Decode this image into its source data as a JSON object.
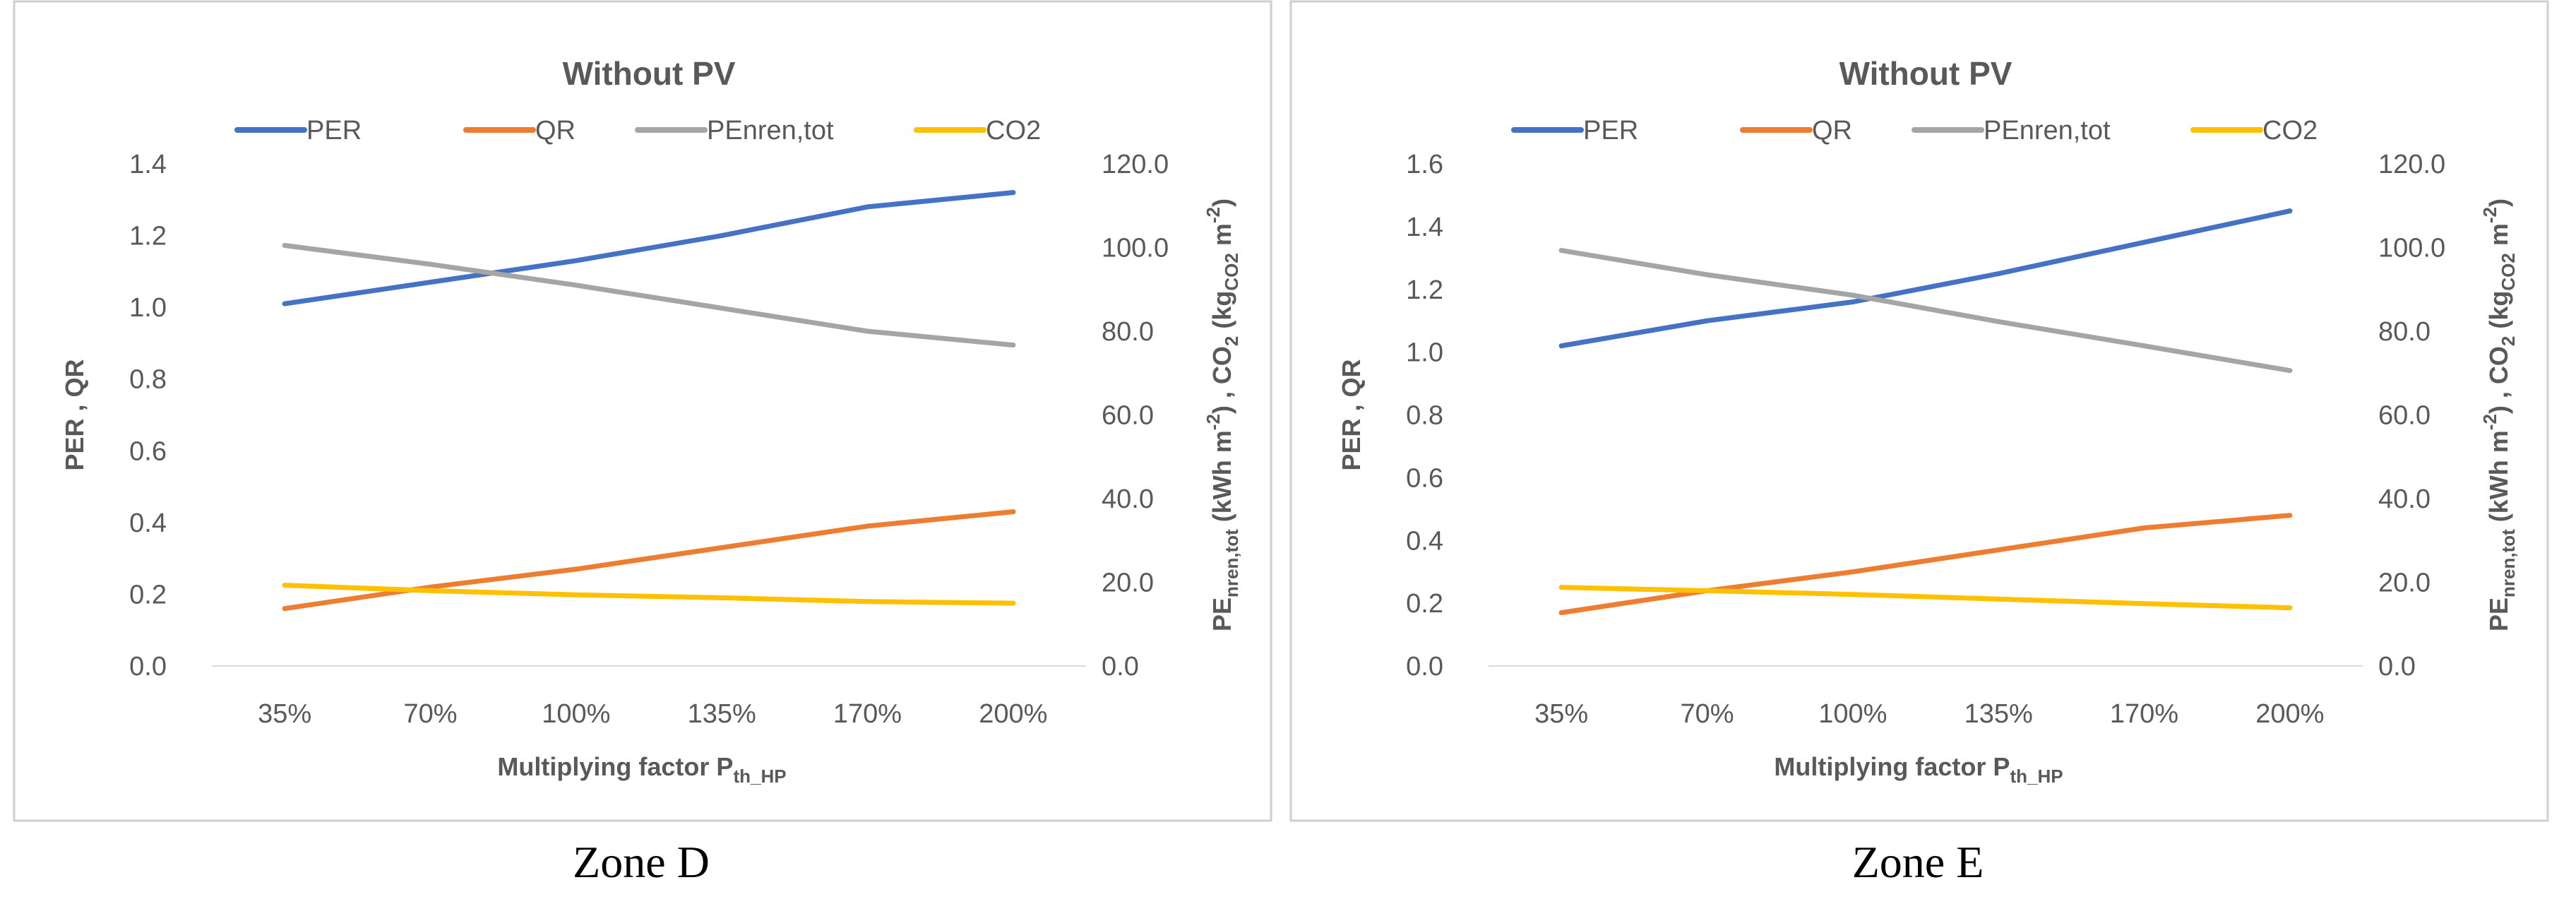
{
  "chart_data": [
    {
      "type": "line",
      "title": "Without PV",
      "caption": "Zone D",
      "categories": [
        "35%",
        "70%",
        "100%",
        "135%",
        "170%",
        "200%"
      ],
      "xlabel": {
        "main": "Multiplying factor P",
        "sub": "th_HP"
      },
      "ylabel_left": "PER , QR",
      "ylabel_right": {
        "pe": "PE",
        "pe_sub": "nren,tot",
        "unit1": " (kWh m",
        "sup1": "-2",
        "mid": ")  ,  CO",
        "co2_sub": "2",
        "unit2": "  (kg",
        "unit2_sub": "CO2",
        "unit2_mid": " m",
        "sup2": "-2",
        "close": ")"
      },
      "ylim_left": [
        0,
        1.4
      ],
      "yticks_left": [
        "0.0",
        "0.2",
        "0.4",
        "0.6",
        "0.8",
        "1.0",
        "1.2",
        "1.4"
      ],
      "ylim_right": [
        0,
        120
      ],
      "yticks_right": [
        "0.0",
        "20.0",
        "40.0",
        "60.0",
        "80.0",
        "100.0",
        "120.0"
      ],
      "series": [
        {
          "name": "PER",
          "axis": "left",
          "color": "#4472c4",
          "values": [
            1.01,
            1.07,
            1.13,
            1.2,
            1.28,
            1.32
          ]
        },
        {
          "name": "QR",
          "axis": "left",
          "color": "#ed7d31",
          "values": [
            0.16,
            0.22,
            0.27,
            0.33,
            0.39,
            0.43
          ]
        },
        {
          "name": "PEnren,tot",
          "axis": "right",
          "color": "#a5a5a5",
          "values": [
            100.5,
            96.0,
            91.0,
            85.5,
            80.0,
            76.7
          ]
        },
        {
          "name": "CO2",
          "axis": "right",
          "color": "#ffc000",
          "values": [
            19.3,
            18.0,
            17.0,
            16.3,
            15.4,
            15.0
          ]
        }
      ]
    },
    {
      "type": "line",
      "title": "Without PV",
      "caption": "Zone E",
      "categories": [
        "35%",
        "70%",
        "100%",
        "135%",
        "170%",
        "200%"
      ],
      "xlabel": {
        "main": "Multiplying factor P",
        "sub": "th_HP"
      },
      "ylabel_left": "PER , QR",
      "ylabel_right": {
        "pe": "PE",
        "pe_sub": "nren,tot",
        "unit1": " (kWh m",
        "sup1": "-2",
        "mid": ")  ,  CO",
        "co2_sub": "2",
        "unit2": "  (kg",
        "unit2_sub": "CO2",
        "unit2_mid": " m",
        "sup2": "-2",
        "close": ")"
      },
      "ylim_left": [
        0,
        1.6
      ],
      "yticks_left": [
        "0.0",
        "0.2",
        "0.4",
        "0.6",
        "0.8",
        "1.0",
        "1.2",
        "1.4",
        "1.6"
      ],
      "ylim_right": [
        0,
        120
      ],
      "yticks_right": [
        "0.0",
        "20.0",
        "40.0",
        "60.0",
        "80.0",
        "100.0",
        "120.0"
      ],
      "series": [
        {
          "name": "PER",
          "axis": "left",
          "color": "#4472c4",
          "values": [
            1.02,
            1.1,
            1.16,
            1.25,
            1.35,
            1.45
          ]
        },
        {
          "name": "QR",
          "axis": "left",
          "color": "#ed7d31",
          "values": [
            0.17,
            0.24,
            0.3,
            0.37,
            0.44,
            0.48
          ]
        },
        {
          "name": "PEnren,tot",
          "axis": "right",
          "color": "#a5a5a5",
          "values": [
            99.3,
            93.5,
            88.6,
            82.3,
            76.5,
            70.6
          ]
        },
        {
          "name": "CO2",
          "axis": "right",
          "color": "#ffc000",
          "values": [
            18.8,
            18.0,
            17.1,
            16.0,
            14.9,
            13.9
          ]
        }
      ]
    }
  ]
}
